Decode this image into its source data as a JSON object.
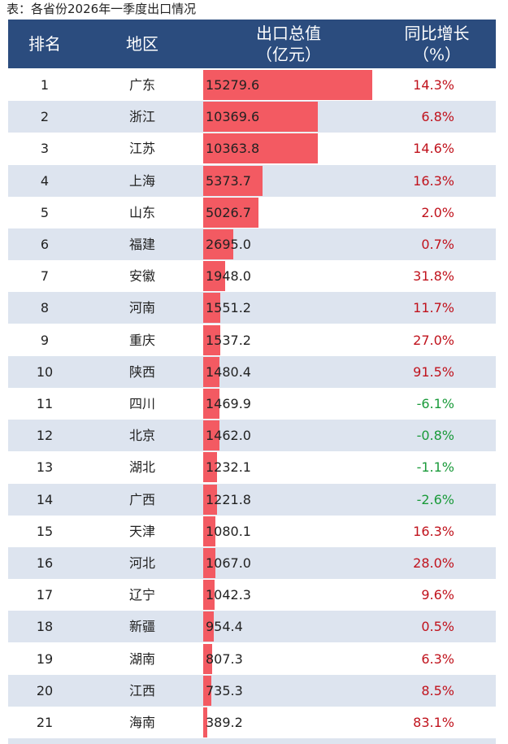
{
  "header": {
    "title": "表：各省份2026年一季度出口情况"
  },
  "table": {
    "columns": [
      "排名",
      "地区",
      "出口总值\n（亿元）",
      "同比增长\n（%）"
    ],
    "rows": [
      [
        "1",
        "广东",
        "15279.6",
        "14.3%"
      ],
      [
        "2",
        "浙江",
        "10369.6",
        "6.8%"
      ],
      [
        "3",
        "江苏",
        "10363.8",
        "14.6%"
      ],
      [
        "4",
        "上海",
        "5373.7",
        "16.3%"
      ],
      [
        "5",
        "山东",
        "5026.7",
        "2.0%"
      ],
      [
        "6",
        "福建",
        "2695.0",
        "0.7%"
      ],
      [
        "7",
        "安徽",
        "1948.0",
        "31.8%"
      ],
      [
        "8",
        "河南",
        "1551.2",
        "11.7%"
      ],
      [
        "9",
        "重庆",
        "1537.2",
        "27.0%"
      ],
      [
        "10",
        "陕西",
        "1480.4",
        "91.5%"
      ],
      [
        "11",
        "四川",
        "1469.9",
        "-6.1%"
      ],
      [
        "12",
        "北京",
        "1462.0",
        "-0.8%"
      ],
      [
        "13",
        "湖北",
        "1232.1",
        "-1.1%"
      ],
      [
        "14",
        "广西",
        "1221.8",
        "-2.6%"
      ],
      [
        "15",
        "天津",
        "1080.1",
        "16.3%"
      ],
      [
        "16",
        "河北",
        "1067.0",
        "28.0%"
      ],
      [
        "17",
        "辽宁",
        "1042.3",
        "9.6%"
      ],
      [
        "18",
        "新疆",
        "954.4",
        "0.5%"
      ],
      [
        "19",
        "湖南",
        "807.3",
        "6.3%"
      ],
      [
        "20",
        "江西",
        "735.3",
        "8.5%"
      ],
      [
        "21",
        "海南",
        "389.2",
        "83.1%"
      ]
    ]
  }
}
